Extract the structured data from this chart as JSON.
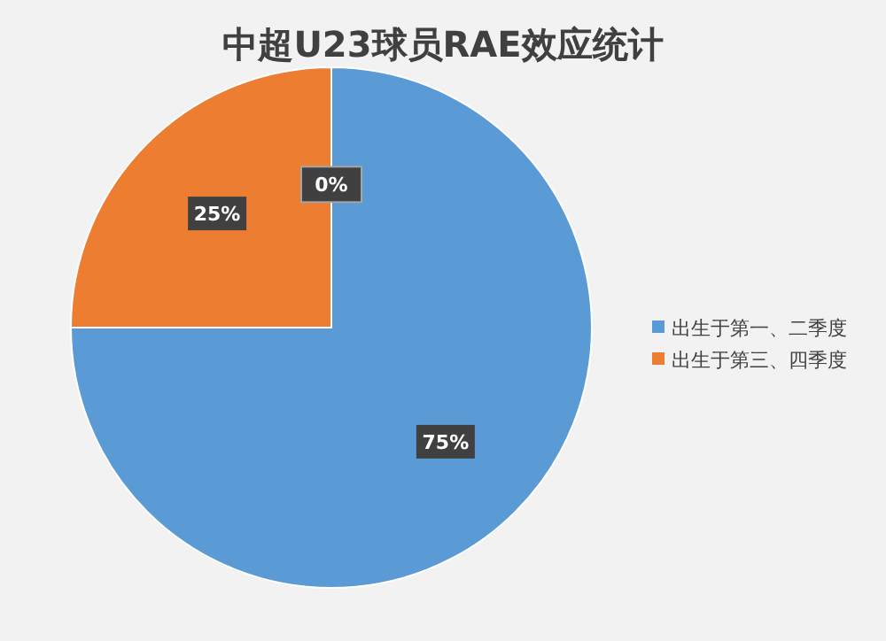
{
  "chart_data": {
    "type": "pie",
    "title": "中超U23球员RAE效应统计",
    "categories": [
      "出生于第一、二季度",
      "出生于第三、四季度",
      null
    ],
    "values": [
      75,
      25,
      0
    ],
    "colors": [
      "#5b9bd5",
      "#ed7d31",
      "#a5a5a5"
    ],
    "value_labels": [
      "75%",
      "25%",
      "0%"
    ],
    "legend": "right"
  }
}
